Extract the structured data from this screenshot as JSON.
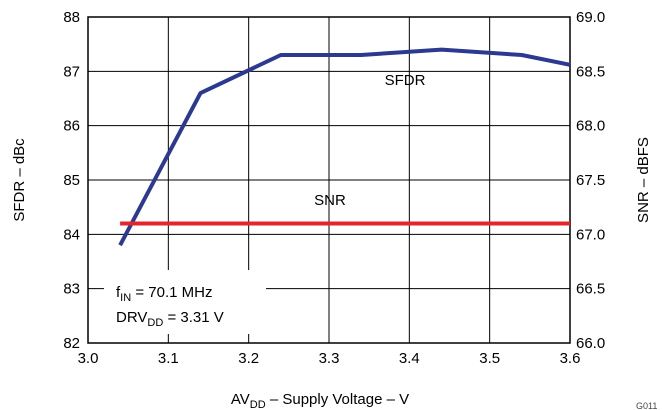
{
  "chart_data": {
    "type": "line",
    "xlabel": "AV",
    "xlabel_sub": "DD",
    "xlabel_rest": " – Supply Voltage – V",
    "ylabel_left": "SFDR – dBc",
    "ylabel_right": "SNR – dBFS",
    "xlim": [
      3.0,
      3.6
    ],
    "ylim_left": [
      82,
      88
    ],
    "ylim_right": [
      66.0,
      69.0
    ],
    "x_ticks": [
      "3.0",
      "3.1",
      "3.2",
      "3.3",
      "3.4",
      "3.5",
      "3.6"
    ],
    "y_left_ticks": [
      "82",
      "83",
      "84",
      "85",
      "86",
      "87",
      "88"
    ],
    "y_right_ticks": [
      "66.0",
      "66.5",
      "67.0",
      "67.5",
      "68.0",
      "68.5",
      "69.0"
    ],
    "grid": true,
    "series": [
      {
        "name": "SFDR",
        "axis": "left",
        "color": "#2b3990",
        "x": [
          3.04,
          3.14,
          3.24,
          3.34,
          3.44,
          3.54,
          3.6
        ],
        "y": [
          83.8,
          86.6,
          87.3,
          87.3,
          87.4,
          87.3,
          87.12
        ]
      },
      {
        "name": "SNR",
        "axis": "right",
        "color": "#e3262e",
        "x": [
          3.04,
          3.6
        ],
        "y": [
          67.1,
          67.1
        ]
      }
    ],
    "annotation": {
      "line1_main": "f",
      "line1_sub": "IN",
      "line1_rest": " = 70.1 MHz",
      "line2_main": "DRV",
      "line2_sub": "DD",
      "line2_rest": " = 3.31 V"
    },
    "figure_code": "G011"
  }
}
